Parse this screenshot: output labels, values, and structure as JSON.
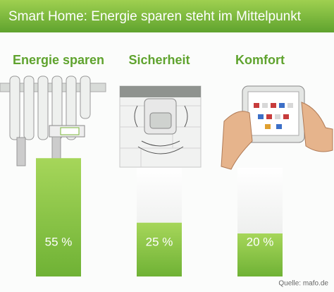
{
  "chart_data": {
    "type": "bar",
    "title": "Smart Home: Energie sparen steht im Mittelpunkt",
    "categories": [
      "Energie sparen",
      "Sicherheit",
      "Komfort"
    ],
    "values": [
      55,
      25,
      20
    ],
    "value_labels": [
      "55 %",
      "25 %",
      "20 %"
    ],
    "color": "#8cc63e",
    "source": "Quelle: mafo.de"
  }
}
